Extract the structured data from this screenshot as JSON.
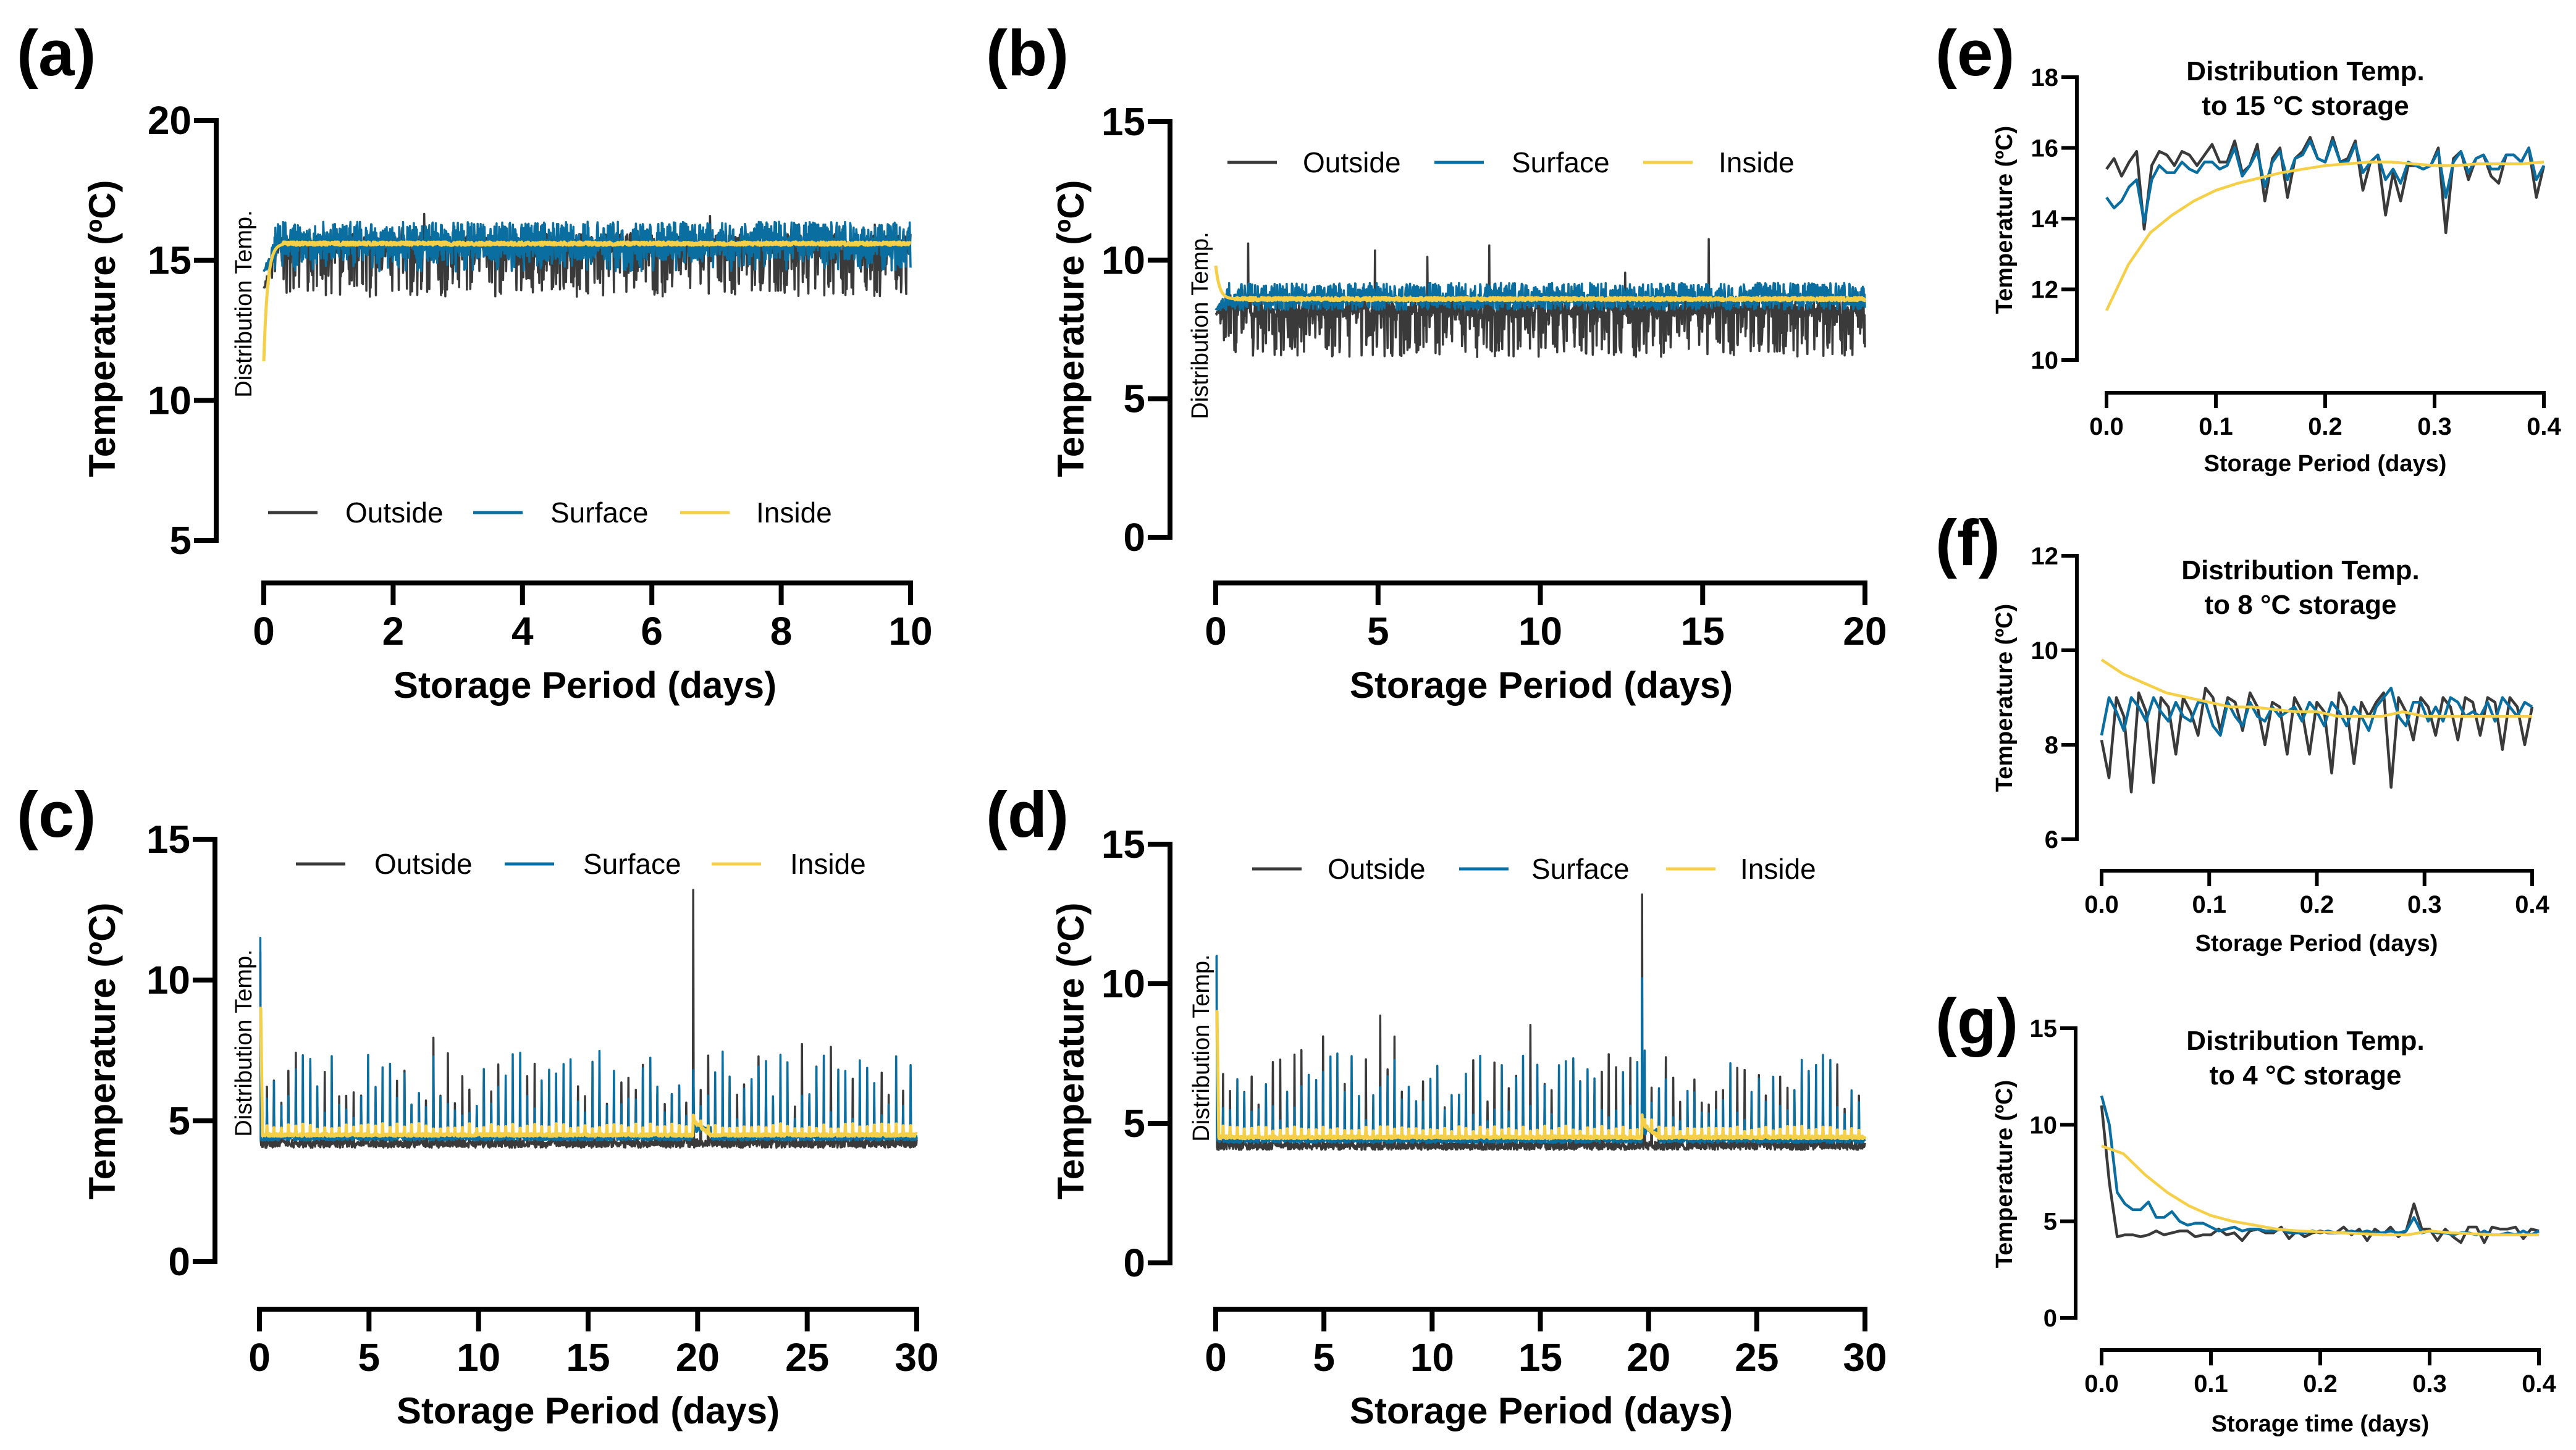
{
  "colors": {
    "outside": "#3a3a3a",
    "surface": "#0a6fa0",
    "inside": "#f5cf48"
  },
  "legend": [
    "Outside",
    "Surface",
    "Inside"
  ],
  "distribution_label": "Distribution Temp.",
  "chart_data": [
    {
      "id": "a",
      "panel_label": "(a)",
      "type": "line",
      "xlabel": "Storage Period (days)",
      "ylabel": "Temperature (ºC)",
      "xlim": [
        0,
        10
      ],
      "ylim": [
        5,
        20
      ],
      "xticks": [
        "0",
        "2",
        "4",
        "6",
        "8",
        "10"
      ],
      "yticks": [
        "5",
        "10",
        "15",
        "20"
      ],
      "annotation": "Distribution Temp.",
      "legend_position": "bottom",
      "series_summary": {
        "Outside": {
          "mean": 15.6,
          "min": 13.7,
          "max": 16.8,
          "start": 14.0
        },
        "Surface": {
          "mean": 15.7,
          "min": 14.6,
          "max": 16.3,
          "start": 14.6
        },
        "Inside": {
          "mean": 15.6,
          "min": 11.4,
          "max": 15.8,
          "start": 11.4
        }
      }
    },
    {
      "id": "b",
      "panel_label": "(b)",
      "type": "line",
      "xlabel": "Storage Period (days)",
      "ylabel": "Temperature (ºC)",
      "xlim": [
        0,
        20
      ],
      "ylim": [
        0,
        15
      ],
      "xticks": [
        "0",
        "5",
        "10",
        "15",
        "20"
      ],
      "yticks": [
        "0",
        "5",
        "10",
        "15"
      ],
      "annotation": "Distribution Temp.",
      "legend_position": "top",
      "series_summary": {
        "Outside": {
          "mean": 8.3,
          "min": 6.5,
          "max": 11.3,
          "start": 8.1
        },
        "Surface": {
          "mean": 8.7,
          "min": 8.2,
          "max": 9.4,
          "start": 8.2
        },
        "Inside": {
          "mean": 8.6,
          "min": 8.5,
          "max": 9.8,
          "start": 9.8
        }
      }
    },
    {
      "id": "c",
      "panel_label": "(c)",
      "type": "line",
      "xlabel": "Storage Period (days)",
      "ylabel": "Temperature (ºC)",
      "xlim": [
        0,
        30
      ],
      "ylim": [
        0,
        15
      ],
      "xticks": [
        "0",
        "5",
        "10",
        "15",
        "20",
        "25",
        "30"
      ],
      "yticks": [
        "0",
        "5",
        "10",
        "15"
      ],
      "annotation": "Distribution Temp.",
      "legend_position": "top",
      "defrost_peak": {
        "day": 19.8,
        "Outside": 13.2,
        "Surface": 6.8,
        "Inside": 5.2
      },
      "series_summary": {
        "Outside": {
          "base": 4.2,
          "peak_min": 5.5,
          "peak_max": 8.8,
          "start": 11.0
        },
        "Surface": {
          "base": 4.4,
          "peak_min": 5.0,
          "peak_max": 7.5,
          "start": 11.5
        },
        "Inside": {
          "base": 4.5,
          "peak_max": 4.9,
          "start": 9.0
        }
      }
    },
    {
      "id": "d",
      "panel_label": "(d)",
      "type": "line",
      "xlabel": "Storage Period (days)",
      "ylabel": "Temperature (ºC)",
      "xlim": [
        0,
        30
      ],
      "ylim": [
        0,
        15
      ],
      "xticks": [
        "0",
        "5",
        "10",
        "15",
        "20",
        "25",
        "30"
      ],
      "yticks": [
        "0",
        "5",
        "10",
        "15"
      ],
      "annotation": "Distribution Temp.",
      "legend_position": "top",
      "defrost_peak": {
        "day": 19.7,
        "Outside": 13.2,
        "Surface": 10.2,
        "Inside": 5.3
      },
      "series_summary": {
        "Outside": {
          "base": 4.2,
          "peak_min": 5.5,
          "peak_max": 8.9,
          "start": 11.0
        },
        "Surface": {
          "base": 4.4,
          "peak_min": 5.0,
          "peak_max": 7.5,
          "start": 11.0
        },
        "Inside": {
          "base": 4.5,
          "peak_max": 4.9,
          "start": 9.0
        }
      }
    },
    {
      "id": "e",
      "panel_label": "(e)",
      "type": "line",
      "title": [
        "Distribution Temp.",
        "to 15 °C storage"
      ],
      "xlabel": "Storage Period (days)",
      "ylabel": "Temperature (ºC)",
      "xlim": [
        0,
        0.4
      ],
      "ylim": [
        10,
        18
      ],
      "xticks": [
        "0.0",
        "0.1",
        "0.2",
        "0.3",
        "0.4"
      ],
      "yticks": [
        "10",
        "12",
        "14",
        "16",
        "18"
      ],
      "series": [
        {
          "name": "Outside",
          "values": [
            15.4,
            15.7,
            15.2,
            15.6,
            15.9,
            13.7,
            15.5,
            15.9,
            15.8,
            15.5,
            15.9,
            15.8,
            15.5,
            15.8,
            16.1,
            15.6,
            15.6,
            16.2,
            15.3,
            15.5,
            16.1,
            14.5,
            15.7,
            16.0,
            14.6,
            15.7,
            15.9,
            16.3,
            15.7,
            15.6,
            16.3,
            15.6,
            15.7,
            16.2,
            14.8,
            15.6,
            15.8,
            14.1,
            15.3,
            14.5,
            15.5,
            15.5,
            15.4,
            15.5,
            16.0,
            13.6,
            15.7,
            15.9,
            15.1,
            15.7,
            15.8,
            15.2,
            15.0,
            15.8,
            15.8,
            15.6,
            16.0,
            14.6,
            15.5
          ]
        },
        {
          "name": "Surface",
          "values": [
            14.6,
            14.3,
            14.5,
            14.9,
            15.1,
            13.9,
            15.1,
            15.5,
            15.3,
            15.3,
            15.6,
            15.4,
            15.3,
            15.6,
            15.6,
            15.4,
            15.5,
            16.0,
            15.2,
            15.5,
            15.9,
            14.9,
            15.6,
            15.9,
            15.1,
            15.7,
            15.8,
            16.2,
            15.7,
            15.6,
            16.2,
            15.6,
            15.6,
            16.1,
            15.3,
            15.6,
            15.8,
            15.1,
            15.4,
            15.0,
            15.6,
            15.5,
            15.4,
            15.5,
            15.9,
            14.6,
            15.6,
            15.9,
            15.3,
            15.7,
            15.8,
            15.4,
            15.4,
            15.8,
            15.8,
            15.6,
            16.0,
            15.1,
            15.5
          ]
        },
        {
          "name": "Inside",
          "values": [
            11.4,
            12.7,
            13.6,
            14.1,
            14.5,
            14.8,
            15.0,
            15.15,
            15.3,
            15.4,
            15.5,
            15.55,
            15.6,
            15.6,
            15.55,
            15.5,
            15.5,
            15.55,
            15.55,
            15.55,
            15.6
          ]
        }
      ]
    },
    {
      "id": "f",
      "panel_label": "(f)",
      "type": "line",
      "title": [
        "Distribution Temp.",
        "to 8 °C storage"
      ],
      "xlabel": "Storage Period (days)",
      "ylabel": "Temperature (ºC)",
      "xlim": [
        0,
        0.4
      ],
      "ylim": [
        6,
        12
      ],
      "xticks": [
        "0.0",
        "0.1",
        "0.2",
        "0.3",
        "0.4"
      ],
      "yticks": [
        "6",
        "8",
        "10",
        "12"
      ],
      "series": [
        {
          "name": "Outside",
          "values": [
            8.1,
            7.3,
            9.0,
            8.6,
            7.0,
            9.1,
            8.7,
            7.2,
            9.0,
            8.8,
            7.8,
            9.0,
            8.7,
            8.2,
            9.2,
            9.0,
            8.3,
            9.0,
            8.9,
            8.3,
            9.1,
            8.8,
            8.0,
            8.9,
            8.8,
            7.8,
            9.0,
            8.7,
            7.8,
            8.9,
            8.7,
            7.4,
            9.1,
            8.8,
            7.6,
            8.9,
            8.6,
            8.9,
            9.1,
            7.1,
            9.0,
            8.7,
            8.1,
            9.0,
            8.8,
            8.2,
            9.0,
            8.8,
            8.1,
            9.0,
            8.9,
            8.2,
            9.0,
            8.9,
            7.9,
            9.0,
            8.8,
            8.0,
            8.8
          ]
        },
        {
          "name": "Surface",
          "values": [
            8.2,
            9.0,
            8.7,
            8.3,
            9.0,
            8.8,
            8.5,
            9.0,
            8.7,
            8.5,
            8.9,
            8.6,
            8.5,
            8.9,
            8.9,
            8.4,
            8.2,
            8.9,
            8.6,
            8.4,
            8.9,
            8.6,
            8.5,
            8.8,
            8.6,
            8.7,
            8.8,
            8.5,
            8.9,
            8.7,
            8.4,
            8.9,
            8.7,
            8.4,
            8.8,
            8.6,
            8.3,
            8.8,
            9.0,
            9.2,
            8.6,
            8.4,
            8.9,
            8.9,
            8.5,
            8.8,
            8.5,
            9.0,
            8.9,
            8.6,
            8.7,
            8.6,
            8.9,
            8.5,
            9.0,
            8.8,
            8.6,
            8.9,
            8.8
          ]
        },
        {
          "name": "Inside",
          "values": [
            9.8,
            9.5,
            9.3,
            9.1,
            9.0,
            8.9,
            8.8,
            8.8,
            8.75,
            8.7,
            8.7,
            8.6,
            8.6,
            8.6,
            8.7,
            8.6,
            8.6,
            8.6,
            8.6,
            8.6,
            8.6
          ]
        }
      ]
    },
    {
      "id": "g",
      "panel_label": "(g)",
      "type": "line",
      "title": [
        "Distribution Temp.",
        "to 4 °C storage"
      ],
      "xlabel": "Storage time (days)",
      "ylabel": "Temperature (ºC)",
      "xlim": [
        0,
        0.4
      ],
      "ylim": [
        0,
        15
      ],
      "xticks": [
        "0.0",
        "0.1",
        "0.2",
        "0.3",
        "0.4"
      ],
      "yticks": [
        "0",
        "5",
        "10",
        "15"
      ],
      "series": [
        {
          "name": "Outside",
          "values": [
            11.0,
            7.0,
            4.2,
            4.3,
            4.3,
            4.2,
            4.3,
            4.5,
            4.3,
            4.4,
            4.5,
            4.5,
            4.2,
            4.3,
            4.3,
            4.6,
            4.3,
            4.4,
            4.0,
            4.5,
            4.6,
            4.4,
            4.4,
            4.7,
            4.1,
            4.5,
            4.2,
            4.4,
            4.5,
            4.4,
            4.4,
            4.7,
            4.3,
            4.6,
            4.0,
            4.6,
            4.3,
            4.7,
            4.2,
            4.5,
            5.9,
            4.6,
            4.6,
            4.0,
            4.6,
            4.2,
            3.9,
            4.7,
            4.7,
            3.9,
            4.7,
            4.6,
            4.6,
            4.7,
            4.1,
            4.6,
            4.5
          ]
        },
        {
          "name": "Surface",
          "values": [
            11.5,
            10.0,
            6.5,
            5.9,
            5.6,
            5.6,
            6.0,
            5.2,
            5.2,
            5.5,
            5.0,
            4.8,
            4.9,
            4.9,
            4.7,
            4.5,
            4.6,
            4.7,
            4.5,
            4.6,
            4.6,
            4.5,
            4.5,
            4.6,
            4.4,
            4.4,
            4.4,
            4.5,
            4.4,
            4.5,
            4.4,
            4.4,
            4.5,
            4.4,
            4.5,
            4.4,
            4.4,
            4.5,
            4.4,
            4.5,
            5.2,
            4.4,
            4.5,
            4.4,
            4.4,
            4.3,
            4.4,
            4.4,
            4.3,
            4.5,
            4.3,
            4.3,
            4.4,
            4.3,
            4.5,
            4.3,
            4.5
          ]
        },
        {
          "name": "Inside",
          "values": [
            8.9,
            8.5,
            7.4,
            6.5,
            5.8,
            5.3,
            5.0,
            4.8,
            4.6,
            4.5,
            4.45,
            4.4,
            4.35,
            4.3,
            4.3,
            4.5,
            4.4,
            4.35,
            4.3,
            4.3,
            4.3
          ]
        }
      ]
    }
  ]
}
